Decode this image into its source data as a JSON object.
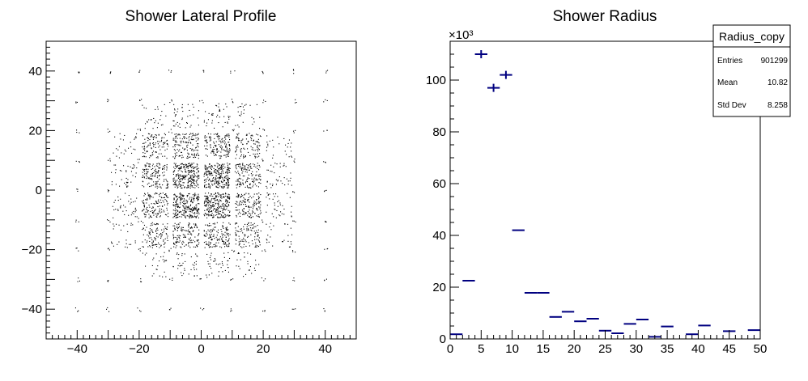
{
  "chart_data": [
    {
      "type": "scatter",
      "title": "Shower Lateral Profile",
      "xlabel": "",
      "ylabel": "",
      "xlim": [
        -50,
        50
      ],
      "ylim": [
        -50,
        50
      ],
      "x_ticks": [
        -40,
        -20,
        0,
        20,
        40
      ],
      "y_ticks": [
        -40,
        -20,
        0,
        20,
        40
      ],
      "x_tick_labels": [
        "−40",
        "−20",
        "0",
        "20",
        "40"
      ],
      "y_tick_labels": [
        "−40",
        "−20",
        "0",
        "20",
        "40"
      ],
      "grid": false,
      "cell_pitch": 10,
      "cells": [
        {
          "x": -5,
          "y": 5,
          "density": 1.0
        },
        {
          "x": 5,
          "y": 5,
          "density": 1.0
        },
        {
          "x": -5,
          "y": -5,
          "density": 1.0
        },
        {
          "x": 5,
          "y": -5,
          "density": 1.0
        },
        {
          "x": -5,
          "y": 15,
          "density": 0.55
        },
        {
          "x": 5,
          "y": 15,
          "density": 0.55
        },
        {
          "x": -15,
          "y": 5,
          "density": 0.55
        },
        {
          "x": 15,
          "y": 5,
          "density": 0.55
        },
        {
          "x": -15,
          "y": -5,
          "density": 0.55
        },
        {
          "x": 15,
          "y": -5,
          "density": 0.55
        },
        {
          "x": -5,
          "y": -15,
          "density": 0.55
        },
        {
          "x": 5,
          "y": -15,
          "density": 0.55
        },
        {
          "x": -15,
          "y": 15,
          "density": 0.4
        },
        {
          "x": 15,
          "y": 15,
          "density": 0.4
        },
        {
          "x": -15,
          "y": -15,
          "density": 0.4
        },
        {
          "x": 15,
          "y": -15,
          "density": 0.4
        },
        {
          "x": -25,
          "y": 5,
          "density": 0.15
        },
        {
          "x": 25,
          "y": 5,
          "density": 0.15
        },
        {
          "x": -25,
          "y": -5,
          "density": 0.15
        },
        {
          "x": 25,
          "y": -5,
          "density": 0.15
        },
        {
          "x": -5,
          "y": 25,
          "density": 0.15
        },
        {
          "x": 5,
          "y": 25,
          "density": 0.15
        },
        {
          "x": -5,
          "y": -25,
          "density": 0.15
        },
        {
          "x": 5,
          "y": -25,
          "density": 0.15
        },
        {
          "x": -25,
          "y": 15,
          "density": 0.1
        },
        {
          "x": 25,
          "y": 15,
          "density": 0.1
        },
        {
          "x": -25,
          "y": -15,
          "density": 0.1
        },
        {
          "x": 25,
          "y": -15,
          "density": 0.1
        },
        {
          "x": -15,
          "y": 25,
          "density": 0.1
        },
        {
          "x": 15,
          "y": 25,
          "density": 0.1
        },
        {
          "x": -15,
          "y": -25,
          "density": 0.1
        },
        {
          "x": 15,
          "y": -25,
          "density": 0.1
        }
      ],
      "outer_grid_points": [
        -40,
        -30,
        -20,
        -10,
        0,
        10,
        20,
        30,
        40
      ]
    },
    {
      "type": "histogram",
      "title": "Shower Radius",
      "xlabel": "",
      "ylabel": "",
      "xlim": [
        0,
        50
      ],
      "ylim": [
        0,
        115000
      ],
      "x_ticks": [
        0,
        5,
        10,
        15,
        20,
        25,
        30,
        35,
        40,
        45,
        50
      ],
      "x_tick_labels": [
        "0",
        "5",
        "10",
        "15",
        "20",
        "25",
        "30",
        "35",
        "40",
        "45",
        "50"
      ],
      "y_ticks": [
        0,
        20000,
        40000,
        60000,
        80000,
        100000
      ],
      "y_tick_labels": [
        "0",
        "20",
        "40",
        "60",
        "80",
        "100"
      ],
      "y_exponent": "×10³",
      "bin_width": 2,
      "bins": [
        {
          "x": 1,
          "value": 1800
        },
        {
          "x": 3,
          "value": 22500
        },
        {
          "x": 5,
          "value": 110000
        },
        {
          "x": 7,
          "value": 97000
        },
        {
          "x": 9,
          "value": 102000
        },
        {
          "x": 11,
          "value": 42000
        },
        {
          "x": 13,
          "value": 17800
        },
        {
          "x": 15,
          "value": 17800
        },
        {
          "x": 17,
          "value": 8500
        },
        {
          "x": 19,
          "value": 10500
        },
        {
          "x": 21,
          "value": 6800
        },
        {
          "x": 23,
          "value": 7800
        },
        {
          "x": 25,
          "value": 3200
        },
        {
          "x": 27,
          "value": 2200
        },
        {
          "x": 29,
          "value": 5800
        },
        {
          "x": 31,
          "value": 7500
        },
        {
          "x": 33,
          "value": 800
        },
        {
          "x": 35,
          "value": 4800
        },
        {
          "x": 37,
          "value": 0
        },
        {
          "x": 39,
          "value": 1800
        },
        {
          "x": 41,
          "value": 5200
        },
        {
          "x": 43,
          "value": 0
        },
        {
          "x": 45,
          "value": 3000
        },
        {
          "x": 47,
          "value": 0
        },
        {
          "x": 49,
          "value": 3400
        }
      ],
      "error_bar_bins": [
        5,
        7,
        9
      ],
      "color": "#000080",
      "stats": {
        "name": "Radius_copy",
        "rows": [
          {
            "label": "Entries",
            "value": "901299"
          },
          {
            "label": "Mean",
            "value": "10.82"
          },
          {
            "label": "Std Dev",
            "value": "8.258"
          }
        ]
      }
    }
  ]
}
